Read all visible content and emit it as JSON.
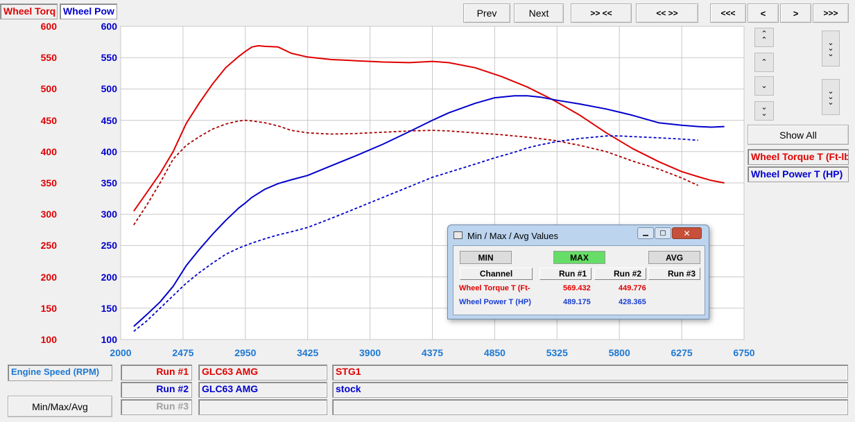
{
  "colors": {
    "torque": "#e00000",
    "power": "#0000cc",
    "axis_x": "#1e78d2",
    "grid": "#c8c8c8"
  },
  "legend_top": {
    "torque_label": "Wheel Torq",
    "power_label": "Wheel Pow"
  },
  "nav": {
    "prev": "Prev",
    "next": "Next",
    "zoom_in": ">> <<",
    "zoom_out": "<< >>",
    "far_left": "<<<",
    "left": "<",
    "right": ">",
    "far_right": ">>>",
    "show_all": "Show All"
  },
  "channels": {
    "torque": "Wheel Torque T (Ft-lb)",
    "power": "Wheel Power T (HP)"
  },
  "bottom": {
    "engine_speed": "Engine Speed (RPM)",
    "minmax_button": "Min/Max/Avg",
    "runs": [
      {
        "label": "Run #1",
        "vehicle": "GLC63 AMG",
        "note": "STG1"
      },
      {
        "label": "Run #2",
        "vehicle": "GLC63 AMG",
        "note": "stock"
      },
      {
        "label": "Run #3",
        "vehicle": "",
        "note": ""
      }
    ]
  },
  "dialog": {
    "title": "Min / Max / Avg Values",
    "min": "MIN",
    "max": "MAX",
    "avg": "AVG",
    "col_channel": "Channel",
    "col_run1": "Run #1",
    "col_run2": "Run #2",
    "col_run3": "Run #3",
    "rows": [
      {
        "channel": "Wheel Torque T (Ft-",
        "run1": "569.432",
        "run2": "449.776"
      },
      {
        "channel": "Wheel Power T (HP)",
        "run1": "489.175",
        "run2": "428.365"
      }
    ]
  },
  "chart_data": {
    "type": "line",
    "title": "",
    "xlabel": "Engine Speed (RPM)",
    "xlim": [
      2000,
      6750
    ],
    "x_ticks": [
      2000,
      2475,
      2950,
      3425,
      3900,
      4375,
      4850,
      5325,
      5800,
      6275,
      6750
    ],
    "y_left": {
      "label": "Wheel Torque T (Ft-lb)",
      "lim": [
        100,
        600
      ],
      "ticks": [
        100,
        150,
        200,
        250,
        300,
        350,
        400,
        450,
        500,
        550,
        600
      ]
    },
    "y_right": {
      "label": "Wheel Power T (HP)",
      "lim": [
        100,
        600
      ],
      "ticks": [
        100,
        150,
        200,
        250,
        300,
        350,
        400,
        450,
        500,
        550,
        600
      ]
    },
    "grid": true,
    "series": [
      {
        "name": "Wheel Torque T (Ft-lb)",
        "run": "Run #1",
        "style": "solid",
        "color": "#e00000",
        "x": [
          2100,
          2200,
          2300,
          2400,
          2500,
          2600,
          2700,
          2800,
          2900,
          2950,
          3000,
          3050,
          3100,
          3200,
          3300,
          3425,
          3600,
          3800,
          4000,
          4200,
          4375,
          4500,
          4700,
          4900,
          5100,
          5300,
          5500,
          5700,
          5900,
          6100,
          6275,
          6400,
          6500,
          6600
        ],
        "y": [
          305,
          335,
          365,
          400,
          445,
          478,
          508,
          534,
          552,
          560,
          567,
          569,
          568,
          567,
          557,
          551,
          547,
          545,
          543,
          542,
          544,
          542,
          534,
          520,
          503,
          482,
          458,
          430,
          405,
          384,
          368,
          360,
          354,
          350
        ]
      },
      {
        "name": "Wheel Torque T (Ft-lb)",
        "run": "Run #2",
        "style": "dashed",
        "color": "#aa0000",
        "x": [
          2100,
          2200,
          2300,
          2400,
          2500,
          2600,
          2700,
          2800,
          2900,
          2950,
          3000,
          3100,
          3200,
          3300,
          3425,
          3600,
          3800,
          4000,
          4200,
          4375,
          4500,
          4700,
          4900,
          5100,
          5300,
          5500,
          5700,
          5900,
          6100,
          6275,
          6400
        ],
        "y": [
          283,
          315,
          350,
          388,
          410,
          424,
          436,
          444,
          449,
          450,
          449,
          446,
          441,
          434,
          430,
          428,
          429,
          431,
          433,
          434,
          433,
          430,
          427,
          423,
          418,
          410,
          400,
          385,
          372,
          358,
          346
        ]
      },
      {
        "name": "Wheel Power T (HP)",
        "run": "Run #1",
        "style": "solid",
        "color": "#0000cc",
        "x": [
          2100,
          2200,
          2300,
          2400,
          2500,
          2600,
          2700,
          2800,
          2900,
          2950,
          3000,
          3100,
          3200,
          3300,
          3425,
          3600,
          3800,
          4000,
          4200,
          4375,
          4500,
          4700,
          4850,
          5000,
          5100,
          5200,
          5325,
          5500,
          5700,
          5900,
          6100,
          6275,
          6400,
          6500,
          6600
        ],
        "y": [
          121,
          140,
          160,
          185,
          218,
          244,
          268,
          290,
          310,
          318,
          327,
          340,
          349,
          355,
          362,
          377,
          394,
          412,
          432,
          450,
          462,
          477,
          486,
          489,
          489,
          487,
          482,
          476,
          468,
          458,
          446,
          442,
          440,
          439,
          440
        ]
      },
      {
        "name": "Wheel Power T (HP)",
        "run": "Run #2",
        "style": "dashed",
        "color": "#0000cc",
        "x": [
          2100,
          2200,
          2300,
          2400,
          2500,
          2600,
          2700,
          2800,
          2900,
          2950,
          3000,
          3100,
          3200,
          3300,
          3425,
          3600,
          3800,
          4000,
          4200,
          4375,
          4500,
          4700,
          4850,
          5000,
          5100,
          5200,
          5325,
          5500,
          5700,
          5800,
          5900,
          6100,
          6275,
          6400
        ],
        "y": [
          113,
          130,
          150,
          170,
          190,
          207,
          222,
          236,
          246,
          250,
          254,
          261,
          267,
          272,
          279,
          293,
          310,
          327,
          344,
          359,
          367,
          380,
          390,
          399,
          406,
          411,
          416,
          421,
          425,
          425,
          424,
          422,
          420,
          418
        ]
      }
    ]
  }
}
